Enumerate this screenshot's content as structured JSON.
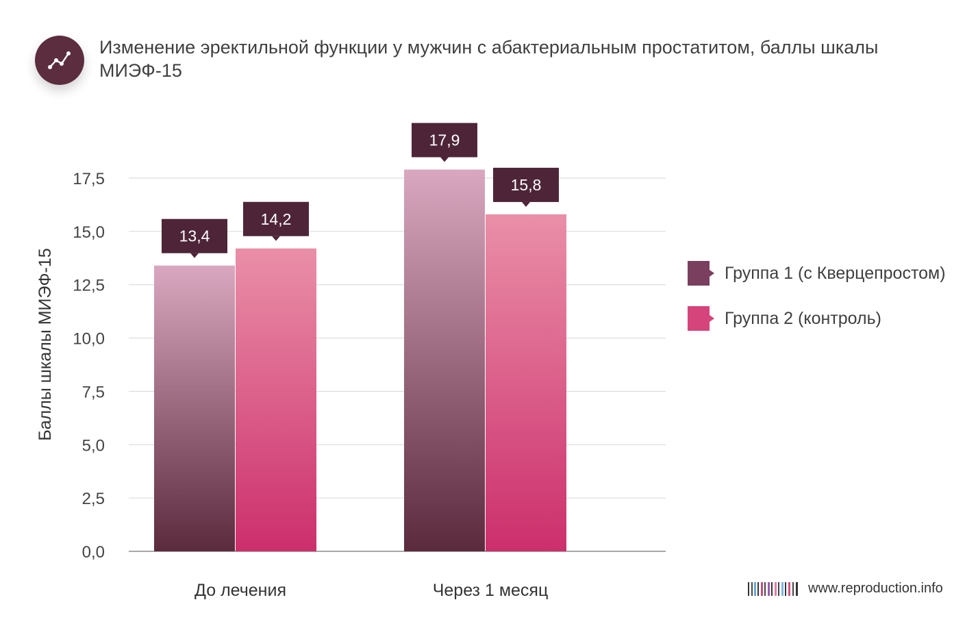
{
  "title": "Изменение эректильной функции у мужчин с абактериальным простатитом, баллы шкалы МИЭФ-15",
  "header_icon": "line-chart-icon",
  "footer": {
    "url": "www.reproduction.info",
    "icon": "barcode-logo-icon"
  },
  "colors": {
    "series1_top": "#d9a8c0",
    "series1_bottom": "#5b2a3d",
    "series2_top": "#ea8fa8",
    "series2_bottom": "#cc2f6c",
    "label_bg": "#4e2538",
    "icon_bg": "#5b2d3f",
    "legend1": "#7a3f5e",
    "legend2": "#d5447b"
  },
  "chart_data": {
    "type": "bar",
    "title": "Изменение эректильной функции у мужчин с абактериальным простатитом, баллы шкалы МИЭФ-15",
    "xlabel": "",
    "ylabel": "Баллы шкалы МИЭФ-15",
    "categories": [
      "До лечения",
      "Через 1 месяц"
    ],
    "series": [
      {
        "name": "Группа 1 (с Кверцепростом)",
        "values": [
          13.4,
          17.9
        ],
        "labels": [
          "13,4",
          "17,9"
        ]
      },
      {
        "name": "Группа 2 (контроль)",
        "values": [
          14.2,
          15.8
        ],
        "labels": [
          "14,2",
          "15,8"
        ]
      }
    ],
    "ylim": [
      0,
      17.5
    ],
    "yticks": [
      0,
      2.5,
      5,
      7.5,
      10,
      12.5,
      15,
      17.5
    ],
    "ytick_labels": [
      "0,0",
      "2,5",
      "5,0",
      "7,5",
      "10,0",
      "12,5",
      "15,0",
      "17,5"
    ],
    "grid": true,
    "legend_position": "right"
  }
}
